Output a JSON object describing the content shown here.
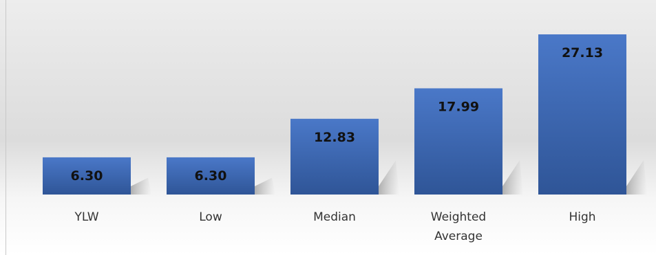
{
  "chart_data": {
    "type": "bar",
    "categories": [
      [
        "YLW"
      ],
      [
        "Low"
      ],
      [
        "Median"
      ],
      [
        "Weighted",
        "Average"
      ],
      [
        "High"
      ]
    ],
    "values": [
      6.3,
      6.3,
      12.83,
      17.99,
      27.13
    ],
    "value_labels": [
      "6.30",
      "6.30",
      "12.83",
      "17.99",
      "27.13"
    ],
    "title": "",
    "xlabel": "",
    "ylabel": "",
    "ylim": [
      0,
      27.13
    ],
    "grid": false,
    "legend": "none",
    "colors": {
      "bar_top": "#4a78c8",
      "bar_bottom": "#2f5597",
      "value_label": "#111111",
      "category_label": "#333333"
    }
  }
}
